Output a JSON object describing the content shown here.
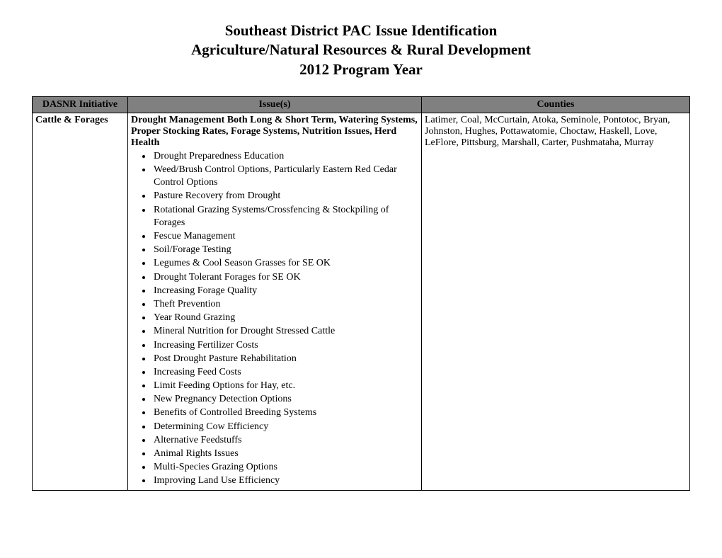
{
  "title": {
    "line1": "Southeast District PAC Issue Identification",
    "line2": "Agriculture/Natural Resources & Rural Development",
    "line3": "2012 Program Year"
  },
  "table": {
    "headers": {
      "initiative": "DASNR Initiative",
      "issues": "Issue(s)",
      "counties": "Counties"
    },
    "row": {
      "initiative": "Cattle & Forages",
      "issue_heading": "Drought Management Both Long & Short Term, Watering Systems, Proper Stocking Rates, Forage Systems, Nutrition Issues, Herd Health",
      "bullets": [
        "Drought Preparedness Education",
        "Weed/Brush Control Options, Particularly Eastern Red Cedar Control Options",
        "Pasture Recovery from Drought",
        "Rotational Grazing Systems/Crossfencing & Stockpiling of Forages",
        "Fescue Management",
        "Soil/Forage Testing",
        "Legumes & Cool Season Grasses for SE OK",
        "Drought Tolerant Forages for SE OK",
        "Increasing Forage Quality",
        "Theft Prevention",
        "Year Round Grazing",
        "Mineral Nutrition for Drought Stressed Cattle",
        "Increasing Fertilizer Costs",
        "Post Drought Pasture Rehabilitation",
        "Increasing Feed Costs",
        "Limit Feeding Options for Hay, etc.",
        "New Pregnancy Detection Options",
        "Benefits of Controlled Breeding Systems",
        "Determining Cow Efficiency",
        "Alternative Feedstuffs",
        "Animal Rights Issues",
        "Multi-Species Grazing Options",
        "Improving Land Use Efficiency"
      ],
      "counties": "Latimer, Coal, McCurtain, Atoka, Seminole, Pontotoc, Bryan, Johnston, Hughes, Pottawatomie, Choctaw, Haskell, Love, LeFlore, Pittsburg, Marshall, Carter, Pushmataha, Murray"
    }
  }
}
